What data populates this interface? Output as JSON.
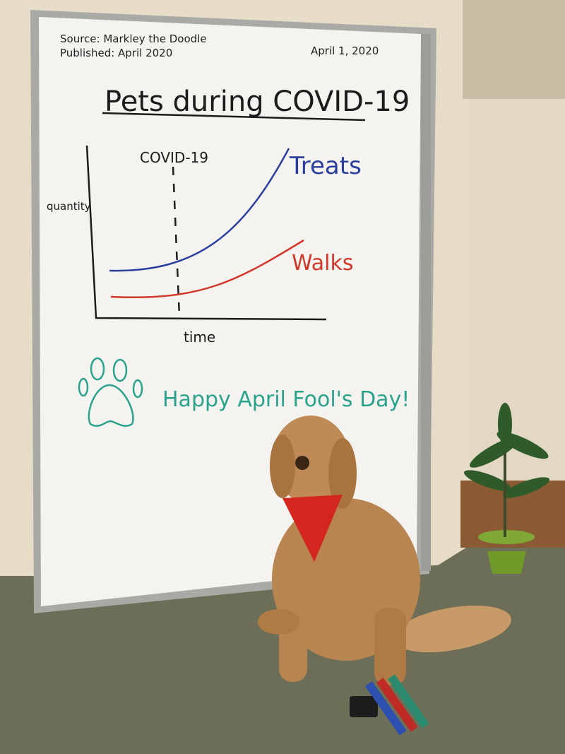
{
  "whiteboard": {
    "source": "Source: Markley the Doodle",
    "published": "Published: April 2020",
    "date": "April 1, 2020",
    "title": "Pets during COVID-19",
    "chart": {
      "y_label": "quantity",
      "x_label": "time",
      "marker_label": "COVID-19",
      "series": [
        {
          "name": "Treats",
          "color": "#2b3f9e"
        },
        {
          "name": "Walks",
          "color": "#d2372a"
        }
      ]
    },
    "message": "Happy April Fool's Day!"
  }
}
